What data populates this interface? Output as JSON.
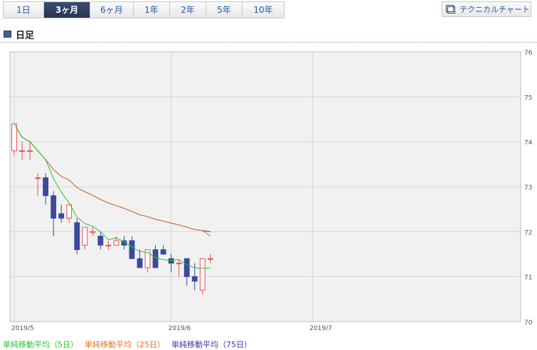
{
  "tabs": [
    {
      "label": "1日",
      "active": false
    },
    {
      "label": "3ヶ月",
      "active": true
    },
    {
      "label": "6ヶ月",
      "active": false
    },
    {
      "label": "1年",
      "active": false
    },
    {
      "label": "2年",
      "active": false
    },
    {
      "label": "5年",
      "active": false
    },
    {
      "label": "10年",
      "active": false
    }
  ],
  "technical_button": {
    "label": "テクニカルチャート",
    "icon": "window-icon"
  },
  "section": {
    "title": "日足"
  },
  "colors": {
    "up": "#e85050",
    "down": "#3b4a9c",
    "ma5": "#2ec42e",
    "ma25": "#e8731e",
    "ma75": "#4a2fa8",
    "plot_bg": "#f1f1f1",
    "grid": "#d4d4d4"
  },
  "legend": [
    {
      "label": "単純移動平均（5日）",
      "color": "#2ec42e"
    },
    {
      "label": "単純移動平均（25日）",
      "color": "#e8731e"
    },
    {
      "label": "単純移動平均（75日）",
      "color": "#4a2fa8"
    }
  ],
  "chart_data": {
    "type": "candlestick",
    "ylim": [
      70,
      76
    ],
    "yticks": [
      70,
      71,
      72,
      73,
      74,
      75,
      76
    ],
    "xticks": [
      {
        "label": "2019/5",
        "index": 0
      },
      {
        "label": "2019/6",
        "index": 20
      },
      {
        "label": "2019/7",
        "index": 38
      }
    ],
    "candles": [
      {
        "o": 73.8,
        "h": 74.4,
        "l": 73.7,
        "c": 74.4
      },
      {
        "o": 73.8,
        "h": 74.0,
        "l": 73.6,
        "c": 73.8
      },
      {
        "o": 73.8,
        "h": 74.0,
        "l": 73.6,
        "c": 73.8
      },
      {
        "o": 73.2,
        "h": 73.3,
        "l": 72.8,
        "c": 73.2
      },
      {
        "o": 73.2,
        "h": 73.3,
        "l": 72.6,
        "c": 72.8
      },
      {
        "o": 72.8,
        "h": 72.9,
        "l": 71.9,
        "c": 72.3
      },
      {
        "o": 72.4,
        "h": 72.6,
        "l": 72.2,
        "c": 72.3
      },
      {
        "o": 72.3,
        "h": 72.6,
        "l": 72.2,
        "c": 72.6
      },
      {
        "o": 72.2,
        "h": 72.3,
        "l": 71.5,
        "c": 71.6
      },
      {
        "o": 71.7,
        "h": 72.1,
        "l": 71.6,
        "c": 72.1
      },
      {
        "o": 72.0,
        "h": 72.1,
        "l": 71.9,
        "c": 72.0
      },
      {
        "o": 71.9,
        "h": 72.0,
        "l": 71.6,
        "c": 71.7
      },
      {
        "o": 71.7,
        "h": 71.8,
        "l": 71.6,
        "c": 71.7
      },
      {
        "o": 71.7,
        "h": 71.9,
        "l": 71.7,
        "c": 71.8
      },
      {
        "o": 71.8,
        "h": 71.9,
        "l": 71.6,
        "c": 71.7
      },
      {
        "o": 71.8,
        "h": 71.9,
        "l": 71.4,
        "c": 71.4
      },
      {
        "o": 71.4,
        "h": 71.6,
        "l": 71.2,
        "c": 71.2
      },
      {
        "o": 71.2,
        "h": 71.6,
        "l": 71.1,
        "c": 71.6
      },
      {
        "o": 71.6,
        "h": 71.7,
        "l": 71.2,
        "c": 71.2
      },
      {
        "o": 71.6,
        "h": 71.7,
        "l": 71.5,
        "c": 71.5
      },
      {
        "o": 71.4,
        "h": 71.5,
        "l": 71.1,
        "c": 71.3
      },
      {
        "o": 71.3,
        "h": 71.4,
        "l": 71.0,
        "c": 71.3
      },
      {
        "o": 71.4,
        "h": 71.4,
        "l": 70.8,
        "c": 71.0
      },
      {
        "o": 71.0,
        "h": 71.3,
        "l": 70.7,
        "c": 70.9
      },
      {
        "o": 70.7,
        "h": 71.4,
        "l": 70.6,
        "c": 71.4
      },
      {
        "o": 71.4,
        "h": 71.5,
        "l": 71.3,
        "c": 71.4
      }
    ]
  }
}
